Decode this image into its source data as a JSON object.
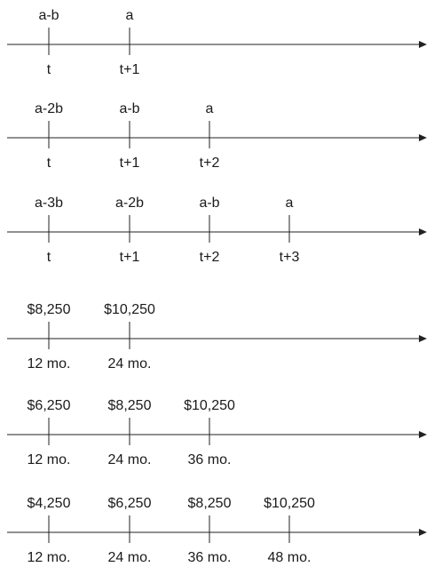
{
  "timelines": [
    {
      "ticks": [
        {
          "above": "a-b",
          "below": "t"
        },
        {
          "above": "a",
          "below": "t+1"
        }
      ]
    },
    {
      "ticks": [
        {
          "above": "a-2b",
          "below": "t"
        },
        {
          "above": "a-b",
          "below": "t+1"
        },
        {
          "above": "a",
          "below": "t+2"
        }
      ]
    },
    {
      "ticks": [
        {
          "above": "a-3b",
          "below": "t"
        },
        {
          "above": "a-2b",
          "below": "t+1"
        },
        {
          "above": "a-b",
          "below": "t+2"
        },
        {
          "above": "a",
          "below": "t+3"
        }
      ]
    },
    {
      "ticks": [
        {
          "above": "$8,250",
          "below": "12 mo."
        },
        {
          "above": "$10,250",
          "below": "24 mo."
        }
      ]
    },
    {
      "ticks": [
        {
          "above": "$6,250",
          "below": "12 mo."
        },
        {
          "above": "$8,250",
          "below": "24 mo."
        },
        {
          "above": "$10,250",
          "below": "36 mo."
        }
      ]
    },
    {
      "ticks": [
        {
          "above": "$4,250",
          "below": "12 mo."
        },
        {
          "above": "$6,250",
          "below": "24 mo."
        },
        {
          "above": "$8,250",
          "below": "36 mo."
        },
        {
          "above": "$10,250",
          "below": "48 mo."
        }
      ]
    }
  ]
}
